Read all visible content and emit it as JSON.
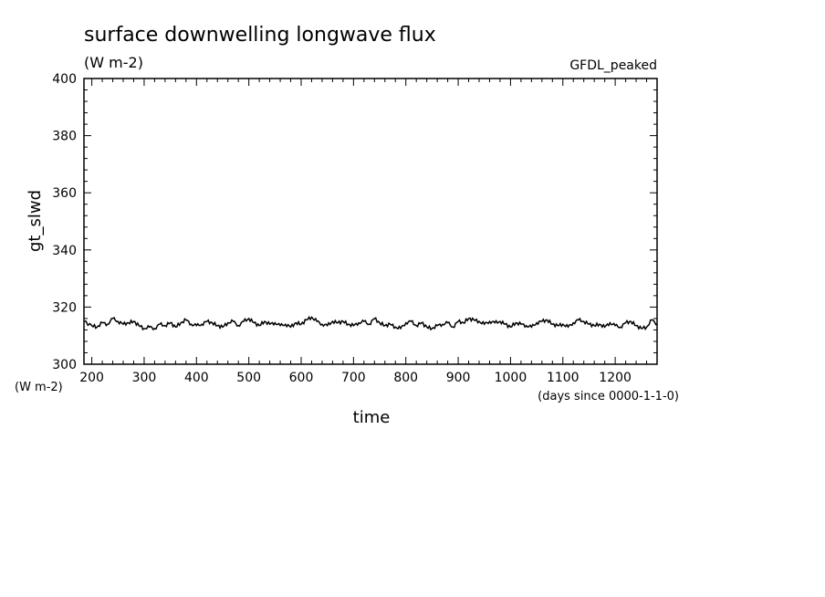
{
  "chart_data": {
    "type": "line",
    "title": "surface downwelling longwave flux",
    "subtitle": "(W m-2)",
    "tag": "GFDL_peaked",
    "ylabel": "gt_slwd",
    "y_units": "(W m-2)",
    "xlabel": "time",
    "x_units": "(days since 0000-1-1-0)",
    "xlim": [
      185,
      1280
    ],
    "ylim": [
      300,
      400
    ],
    "xticks": [
      200,
      300,
      400,
      500,
      600,
      700,
      800,
      900,
      1000,
      1100,
      1200
    ],
    "yticks": [
      300,
      320,
      340,
      360,
      380,
      400
    ],
    "grid": false,
    "series": [
      {
        "x": [
          185,
          200,
          210,
          220,
          230,
          240,
          250,
          260,
          270,
          280,
          290,
          300,
          310,
          320,
          330,
          340,
          350,
          360,
          370,
          380,
          390,
          400,
          410,
          420,
          430,
          440,
          450,
          460,
          470,
          480,
          490,
          500,
          510,
          520,
          530,
          540,
          550,
          560,
          570,
          580,
          590,
          600,
          610,
          620,
          630,
          640,
          650,
          660,
          670,
          680,
          690,
          700,
          710,
          720,
          730,
          740,
          750,
          760,
          770,
          780,
          790,
          800,
          810,
          820,
          830,
          840,
          850,
          860,
          870,
          880,
          890,
          900,
          910,
          920,
          930,
          940,
          950,
          960,
          970,
          980,
          990,
          1000,
          1010,
          1020,
          1030,
          1040,
          1050,
          1060,
          1070,
          1080,
          1090,
          1100,
          1110,
          1120,
          1130,
          1140,
          1150,
          1160,
          1170,
          1180,
          1190,
          1200,
          1210,
          1220,
          1230,
          1240,
          1250,
          1260,
          1270,
          1280
        ],
        "values": [
          315.0,
          313.5,
          313.0,
          314.5,
          314.0,
          316.0,
          315.0,
          314.0,
          314.5,
          315.0,
          313.5,
          312.5,
          313.0,
          312.5,
          314.0,
          313.5,
          314.5,
          313.0,
          314.5,
          315.5,
          314.0,
          313.5,
          314.0,
          315.0,
          314.5,
          313.5,
          313.0,
          314.5,
          315.0,
          313.5,
          315.0,
          316.0,
          314.5,
          313.5,
          315.0,
          314.0,
          314.5,
          313.5,
          314.0,
          313.0,
          314.5,
          314.0,
          315.5,
          316.5,
          315.0,
          314.0,
          313.5,
          315.0,
          314.5,
          315.0,
          314.0,
          313.5,
          314.5,
          315.0,
          314.0,
          316.0,
          314.5,
          313.5,
          314.0,
          313.0,
          312.5,
          314.5,
          315.0,
          313.5,
          314.5,
          313.0,
          312.5,
          313.5,
          314.0,
          314.5,
          313.0,
          315.0,
          314.5,
          316.0,
          315.5,
          315.0,
          314.0,
          315.0,
          314.5,
          315.0,
          314.0,
          313.0,
          314.5,
          314.0,
          313.5,
          313.0,
          314.5,
          315.0,
          315.5,
          314.0,
          313.5,
          314.0,
          313.0,
          314.5,
          315.5,
          315.0,
          314.0,
          313.5,
          314.0,
          313.0,
          314.5,
          313.5,
          313.0,
          314.5,
          315.0,
          313.5,
          312.5,
          313.0,
          315.5,
          314.0
        ]
      }
    ]
  }
}
